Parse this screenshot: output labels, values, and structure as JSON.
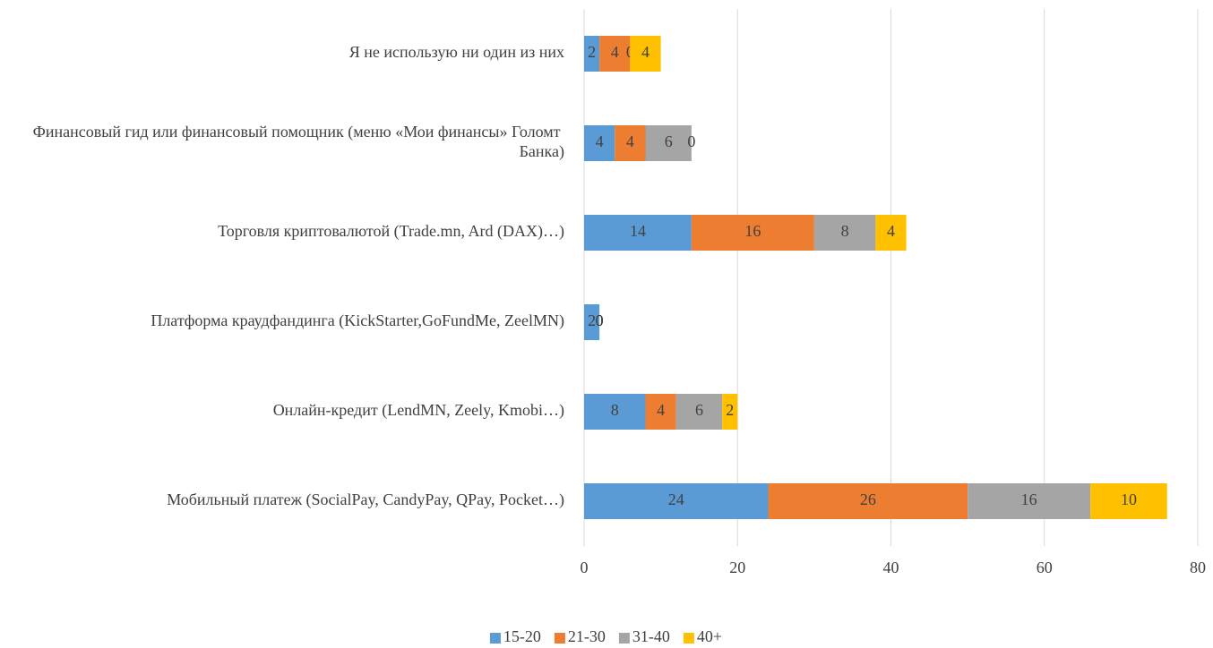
{
  "chart_data": {
    "type": "stacked_barh",
    "categories": [
      "Я не использую ни один из них",
      "Финансовый гид или финансовый помощник (меню «Мои финансы» Голомт Банка)",
      "Торговля криптовалютой (Trade.mn, Ard (DAX)…)",
      "Платформа краудфандинга (KickStarter,GoFundMe, ZeelMN)",
      "Онлайн-кредит (LendMN, Zeely, Kmobi…)",
      "Мобильный платеж (SocialPay, CandyPay, QPay, Pocket…)"
    ],
    "series": [
      {
        "name": "15-20",
        "color": "#5b9bd5",
        "values": [
          2,
          4,
          14,
          2,
          8,
          24
        ]
      },
      {
        "name": "21-30",
        "color": "#ed7d31",
        "values": [
          4,
          4,
          16,
          0,
          4,
          26
        ]
      },
      {
        "name": "31-40",
        "color": "#a5a5a5",
        "values": [
          0,
          6,
          8,
          0,
          6,
          16
        ]
      },
      {
        "name": "40+",
        "color": "#ffc000",
        "values": [
          4,
          0,
          4,
          0,
          2,
          10
        ]
      }
    ],
    "xlim": [
      0,
      80
    ],
    "xticks": [
      0,
      20,
      40,
      60,
      80
    ],
    "grid": true,
    "legend": "bottom"
  }
}
